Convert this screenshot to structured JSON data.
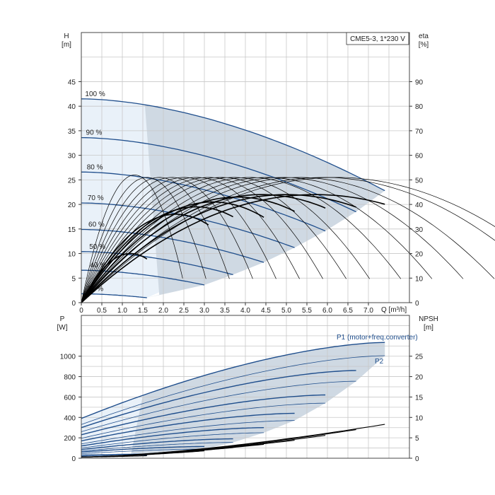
{
  "colors": {
    "region_dark": "#cfd9e3",
    "region_light": "#e9f1f9",
    "curve": "#1f4e8c",
    "black_curve": "#000000",
    "grid": "#c8c8c8"
  },
  "chart_data": [
    {
      "type": "line",
      "title": "CME5-3, 1*230 V",
      "xlabel": "Q [m³/h]",
      "ylabel": "H [m]",
      "ylabel_sym": "H",
      "ylabel_unit": "[m]",
      "ylabel2": "eta [%]",
      "ylabel2_sym": "eta",
      "ylabel2_unit": "[%]",
      "xlim": [
        0,
        8.0
      ],
      "ylim": [
        0,
        55
      ],
      "ylim2": [
        0,
        110
      ],
      "x_ticks": [
        "0",
        "0.5",
        "1.0",
        "1.5",
        "2.0",
        "2.5",
        "3.0",
        "3.5",
        "4.0",
        "4.5",
        "5.0",
        "5.5",
        "6.0",
        "6.5",
        "7.0"
      ],
      "x_tick_values": [
        0,
        0.5,
        1,
        1.5,
        2,
        2.5,
        3,
        3.5,
        4,
        4.5,
        5,
        5.5,
        6,
        6.5,
        7
      ],
      "x_unit_label": "Q [m³/h]",
      "y_ticks": [
        0,
        5,
        10,
        15,
        20,
        25,
        30,
        35,
        40,
        45
      ],
      "y2_ticks": [
        0,
        10,
        20,
        30,
        40,
        50,
        60,
        70,
        80,
        90
      ],
      "grid": true,
      "speed_curves": [
        {
          "name": "100 %",
          "H0": 41.5,
          "Qmax": 7.4,
          "Hend": 22.8
        },
        {
          "name": "90 %",
          "H0": 33.6,
          "Qmax": 6.7,
          "Hend": 18.5
        },
        {
          "name": "80 %",
          "H0": 26.6,
          "Qmax": 5.95,
          "Hend": 14.6
        },
        {
          "name": "70 %",
          "H0": 20.3,
          "Qmax": 5.2,
          "Hend": 11.2
        },
        {
          "name": "60 %",
          "H0": 14.9,
          "Qmax": 4.45,
          "Hend": 8.2
        },
        {
          "name": "50 %",
          "H0": 10.4,
          "Qmax": 3.7,
          "Hend": 5.7
        },
        {
          "name": "40 %",
          "H0": 6.6,
          "Qmax": 3.0,
          "Hend": 3.6
        },
        {
          "name": "21 %",
          "H0": 1.8,
          "Qmax": 1.6,
          "Hend": 1.0
        }
      ],
      "efficiency_curves": [
        {
          "Qpeak": 1.3,
          "etapeak": 52
        },
        {
          "Qpeak": 1.6,
          "etapeak": 51
        },
        {
          "Qpeak": 1.9,
          "etapeak": 51
        },
        {
          "Qpeak": 2.2,
          "etapeak": 51
        },
        {
          "Qpeak": 2.5,
          "etapeak": 51
        },
        {
          "Qpeak": 2.8,
          "etapeak": 51
        },
        {
          "Qpeak": 3.1,
          "etapeak": 51
        },
        {
          "Qpeak": 3.4,
          "etapeak": 51
        },
        {
          "Qpeak": 3.7,
          "etapeak": 51
        },
        {
          "Qpeak": 4.1,
          "etapeak": 51
        },
        {
          "Qpeak": 4.5,
          "etapeak": 51
        },
        {
          "Qpeak": 4.9,
          "etapeak": 51
        },
        {
          "Qpeak": 5.3,
          "etapeak": 51
        },
        {
          "Qpeak": 5.9,
          "etapeak": 51
        },
        {
          "Qpeak": 6.2,
          "etapeak": 51
        }
      ],
      "total_efficiency_curves": [
        {
          "Qpeak": 1.2,
          "etapeak": 20,
          "Qend": 1.6
        },
        {
          "Qpeak": 2.3,
          "etapeak": 36,
          "Qend": 3.1
        },
        {
          "Qpeak": 2.8,
          "etapeak": 39,
          "Qend": 3.7
        },
        {
          "Qpeak": 3.2,
          "etapeak": 41,
          "Qend": 4.45
        },
        {
          "Qpeak": 3.8,
          "etapeak": 43,
          "Qend": 5.2
        },
        {
          "Qpeak": 4.4,
          "etapeak": 44,
          "Qend": 5.95
        },
        {
          "Qpeak": 5.0,
          "etapeak": 44,
          "Qend": 6.7
        },
        {
          "Qpeak": 5.7,
          "etapeak": 44,
          "Qend": 7.4
        }
      ]
    },
    {
      "type": "line",
      "ylabel": "P [W]",
      "ylabel_sym": "P",
      "ylabel_unit": "[W]",
      "ylabel2": "NPSH [m]",
      "ylabel2_sym": "NPSH",
      "ylabel2_unit": "[m]",
      "xlim": [
        0,
        8.0
      ],
      "ylim": [
        0,
        1400
      ],
      "ylim2": [
        0,
        35
      ],
      "y_ticks": [
        0,
        200,
        400,
        600,
        800,
        1000
      ],
      "y2_ticks": [
        0,
        5,
        10,
        15,
        20,
        25
      ],
      "grid": true,
      "legend_p1": "P1 (motor+freq.converter)",
      "legend_p2": "P2",
      "p1_curves": [
        {
          "P0": 390,
          "Qmax": 7.4,
          "Pend": 1135
        },
        {
          "P0": 300,
          "Qmax": 6.7,
          "Pend": 860
        },
        {
          "P0": 230,
          "Qmax": 5.95,
          "Pend": 620
        },
        {
          "P0": 170,
          "Qmax": 5.2,
          "Pend": 440
        },
        {
          "P0": 120,
          "Qmax": 4.45,
          "Pend": 300
        },
        {
          "P0": 85,
          "Qmax": 3.7,
          "Pend": 190
        },
        {
          "P0": 60,
          "Qmax": 3.0,
          "Pend": 115
        },
        {
          "P0": 30,
          "Qmax": 1.6,
          "Pend": 40
        }
      ],
      "p2_curves": [
        {
          "P0": 330,
          "Qmax": 7.4,
          "Pend": 1005
        },
        {
          "P0": 260,
          "Qmax": 6.7,
          "Pend": 755
        },
        {
          "P0": 195,
          "Qmax": 5.95,
          "Pend": 540
        },
        {
          "P0": 140,
          "Qmax": 5.2,
          "Pend": 370
        },
        {
          "P0": 100,
          "Qmax": 4.45,
          "Pend": 250
        },
        {
          "P0": 70,
          "Qmax": 3.7,
          "Pend": 155
        },
        {
          "P0": 45,
          "Qmax": 3.0,
          "Pend": 90
        },
        {
          "P0": 20,
          "Qmax": 1.6,
          "Pend": 30
        }
      ],
      "npsh_curves": [
        {
          "Qmax": 7.4,
          "Nend": 8.3
        },
        {
          "Qmax": 6.7,
          "Nend": 7.0
        },
        {
          "Qmax": 5.95,
          "Nend": 5.6
        },
        {
          "Qmax": 5.2,
          "Nend": 4.4
        },
        {
          "Qmax": 4.45,
          "Nend": 3.4
        },
        {
          "Qmax": 3.7,
          "Nend": 2.6
        },
        {
          "Qmax": 3.0,
          "Nend": 1.8
        },
        {
          "Qmax": 1.6,
          "Nend": 0.6
        }
      ]
    }
  ]
}
